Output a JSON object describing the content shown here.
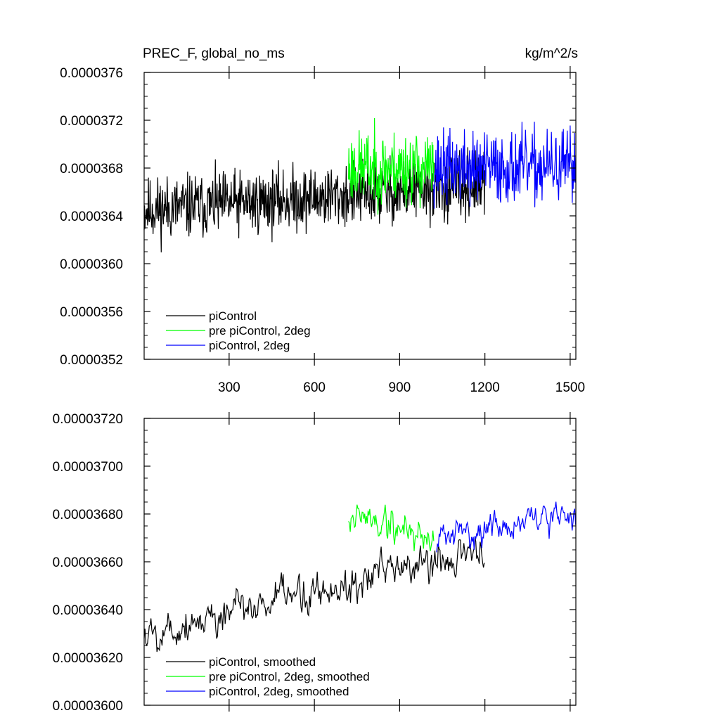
{
  "chart_data": [
    {
      "type": "line",
      "title_left": "PREC_F, global_no_ms",
      "title_right": "kg/m^2/s",
      "xlim": [
        1,
        1520
      ],
      "ylim": [
        3.52e-05,
        3.76e-05
      ],
      "x_ticks": [
        300,
        600,
        900,
        1200,
        1500
      ],
      "x_tick_labels": [
        "300",
        "600",
        "900",
        "1200",
        "1500"
      ],
      "y_ticks": [
        3.52e-05,
        3.56e-05,
        3.6e-05,
        3.64e-05,
        3.68e-05,
        3.72e-05,
        3.76e-05
      ],
      "y_tick_labels": [
        "0.0000352",
        "0.0000356",
        "0.0000360",
        "0.0000364",
        "0.0000368",
        "0.0000372",
        "0.0000376"
      ],
      "legend_position": "bottom-left",
      "series": [
        {
          "name": "piControl",
          "color": "#000000",
          "x_start": 1,
          "x_end": 1200,
          "trend_start": 3.645e-05,
          "trend_end": 3.665e-05,
          "noise": 4e-07,
          "seed": 11
        },
        {
          "name": "pre piControl, 2deg",
          "color": "#00ff00",
          "x_start": 720,
          "x_end": 1020,
          "trend_start": 3.68e-05,
          "trend_end": 3.68e-05,
          "noise": 4.5e-07,
          "seed": 23
        },
        {
          "name": "piControl, 2deg",
          "color": "#0000ff",
          "x_start": 1020,
          "x_end": 1520,
          "trend_start": 3.68e-05,
          "trend_end": 3.68e-05,
          "noise": 4.5e-07,
          "seed": 37
        }
      ],
      "legend": [
        "piControl",
        "pre piControl, 2deg",
        "piControl, 2deg"
      ]
    },
    {
      "type": "line",
      "xlim": [
        1,
        1520
      ],
      "ylim": [
        3.6e-05,
        3.72e-05
      ],
      "x_ticks": [
        300,
        600,
        900,
        1200,
        1500
      ],
      "y_ticks": [
        3.6e-05,
        3.62e-05,
        3.64e-05,
        3.66e-05,
        3.68e-05,
        3.7e-05,
        3.72e-05
      ],
      "y_tick_labels": [
        "0.00003600",
        "0.00003620",
        "0.00003640",
        "0.00003660",
        "0.00003680",
        "0.00003700",
        "0.00003720"
      ],
      "legend_position": "bottom-left",
      "series": [
        {
          "name": "piControl, smoothed",
          "color": "#000000",
          "x_start": 1,
          "x_end": 1200,
          "trend_start": 3.63e-05,
          "trend_end": 3.665e-05,
          "noise": 1.2e-07,
          "seed": 5
        },
        {
          "name": "pre piControl, 2deg, smoothed",
          "color": "#00ff00",
          "x_start": 720,
          "x_end": 1020,
          "trend_start": 3.68e-05,
          "trend_end": 3.67e-05,
          "noise": 1.2e-07,
          "seed": 19
        },
        {
          "name": "piControl, 2deg, smoothed",
          "color": "#0000ff",
          "x_start": 1030,
          "x_end": 1520,
          "trend_start": 3.67e-05,
          "trend_end": 3.68e-05,
          "noise": 9e-08,
          "seed": 31
        }
      ],
      "legend": [
        "piControl, smoothed",
        "pre piControl, 2deg, smoothed",
        "piControl, 2deg, smoothed"
      ]
    }
  ]
}
